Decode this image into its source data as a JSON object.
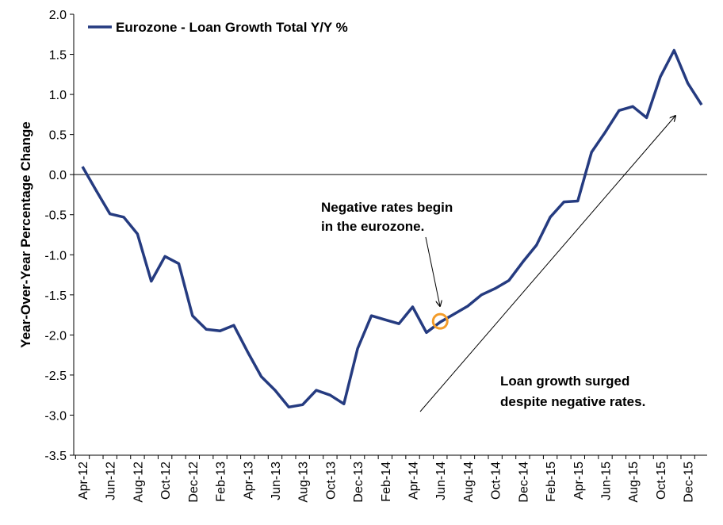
{
  "chart_data": {
    "type": "line",
    "title": "",
    "xlabel": "",
    "ylabel": "Year-Over-Year Percentage Change",
    "ylim": [
      -3.5,
      2.0
    ],
    "yticks": [
      "2.0",
      "1.5",
      "1.0",
      "0.5",
      "0.0",
      "-0.5",
      "-1.0",
      "-1.5",
      "-2.0",
      "-2.5",
      "-3.0",
      "-3.5"
    ],
    "x_tick_labels": [
      "Apr-12",
      "Jun-12",
      "Aug-12",
      "Oct-12",
      "Dec-12",
      "Feb-13",
      "Apr-13",
      "Jun-13",
      "Aug-13",
      "Oct-13",
      "Dec-13",
      "Feb-14",
      "Apr-14",
      "Jun-14",
      "Aug-14",
      "Oct-14",
      "Dec-14",
      "Feb-15",
      "Apr-15",
      "Jun-15",
      "Aug-15",
      "Oct-15",
      "Dec-15"
    ],
    "x": [
      "Apr-12",
      "May-12",
      "Jun-12",
      "Jul-12",
      "Aug-12",
      "Sep-12",
      "Oct-12",
      "Nov-12",
      "Dec-12",
      "Jan-13",
      "Feb-13",
      "Mar-13",
      "Apr-13",
      "May-13",
      "Jun-13",
      "Jul-13",
      "Aug-13",
      "Sep-13",
      "Oct-13",
      "Nov-13",
      "Dec-13",
      "Jan-14",
      "Feb-14",
      "Mar-14",
      "Apr-14",
      "May-14",
      "Jun-14",
      "Jul-14",
      "Aug-14",
      "Sep-14",
      "Oct-14",
      "Nov-14",
      "Dec-14",
      "Jan-15",
      "Feb-15",
      "Mar-15",
      "Apr-15",
      "May-15",
      "Jun-15",
      "Jul-15",
      "Aug-15",
      "Sep-15",
      "Oct-15",
      "Nov-15",
      "Dec-15",
      "Jan-16"
    ],
    "series": [
      {
        "name": "Eurozone - Loan Growth Total Y/Y %",
        "color": "#253B80",
        "values": [
          0.1,
          -0.2,
          -0.49,
          -0.53,
          -0.74,
          -1.33,
          -1.02,
          -1.11,
          -1.76,
          -1.93,
          -1.95,
          -1.88,
          -2.21,
          -2.52,
          -2.69,
          -2.9,
          -2.87,
          -2.69,
          -2.75,
          -2.86,
          -2.17,
          -1.76,
          -1.81,
          -1.86,
          -1.65,
          -1.97,
          -1.84,
          -1.74,
          -1.64,
          -1.5,
          -1.42,
          -1.32,
          -1.09,
          -0.88,
          -0.53,
          -0.34,
          -0.33,
          0.28,
          0.53,
          0.8,
          0.85,
          0.71,
          1.22,
          1.55,
          1.14,
          0.87
        ]
      }
    ],
    "grid": false,
    "legend": "top-left",
    "annotations": [
      {
        "lines": [
          "Negative rates begin",
          "in the eurozone."
        ],
        "points_to": "Jun-14"
      },
      {
        "lines": [
          "Loan growth surged",
          "despite negative rates."
        ]
      }
    ],
    "highlight": {
      "x": "Jun-14",
      "y": -1.83,
      "color": "#F39C2A"
    }
  }
}
